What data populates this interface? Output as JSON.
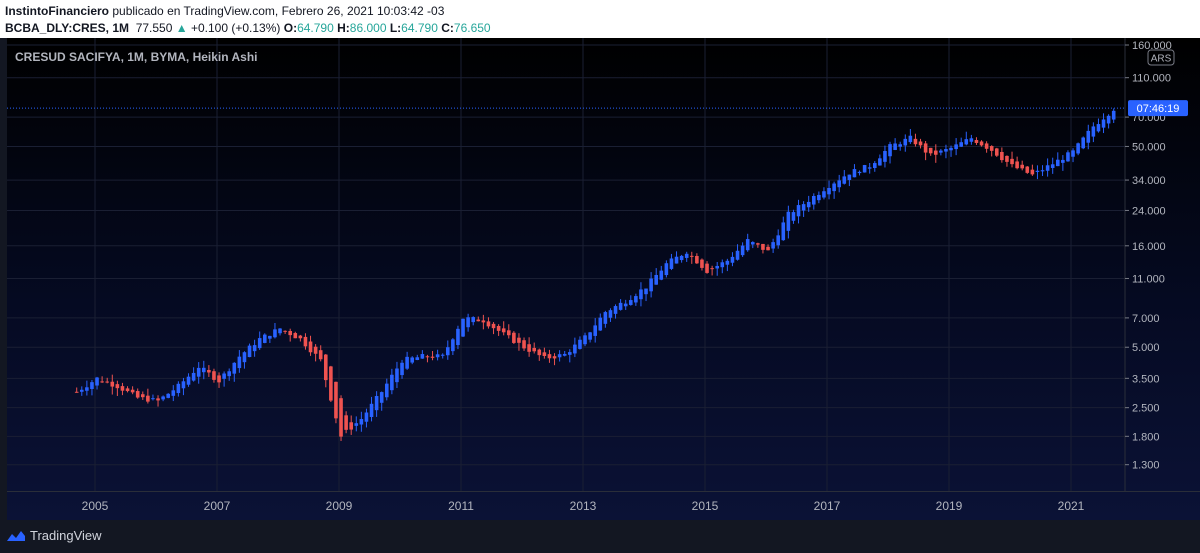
{
  "header": {
    "author": "InstintoFinanciero",
    "published_text": "publicado en TradingView.com, Febrero 26, 2021 10:03:42 -03",
    "symbol": "BCBA_DLY:CRES, 1M",
    "last_price": "77.550",
    "change_arrow": "▲",
    "change": "+0.100 (+0.13%)",
    "o_label": "O:",
    "o_value": "64.790",
    "h_label": "H:",
    "h_value": "86.000",
    "l_label": "L:",
    "l_value": "64.790",
    "c_label": "C:",
    "c_value": "76.650"
  },
  "chart_title": "CRESUD SACIFYA, 1M, BYMA, Heikin Ashi",
  "footer": {
    "brand": "TradingView"
  },
  "colors": {
    "up": "#2962ff",
    "down": "#ef5350",
    "countdown_bg": "#2962ff",
    "grid": "#1a1f33"
  },
  "chart_data": {
    "type": "candlestick",
    "chart_type": "Heikin Ashi",
    "scale": "log",
    "currency": "ARS",
    "countdown": "07:46:19",
    "current_price": 77.55,
    "x_ticks": [
      "2005",
      "2007",
      "2009",
      "2011",
      "2013",
      "2015",
      "2017",
      "2019",
      "2021"
    ],
    "y_ticks": [
      "160.000",
      "110.000",
      "70.000",
      "50.000",
      "34.000",
      "24.000",
      "16.000",
      "11.000",
      "7.000",
      "5.000",
      "3.500",
      "2.500",
      "1.800",
      "1.300"
    ],
    "ylim": [
      1.1,
      165
    ],
    "series": [
      {
        "values": [
          3.0,
          3.5,
          3.2,
          2.8,
          2.7,
          3.2,
          4.0,
          3.4,
          4.5,
          5.5,
          6.2,
          5.5,
          4.3,
          1.8,
          2.2,
          3.0,
          4.3,
          4.5,
          4.5,
          7.0,
          6.8,
          5.8,
          5.0,
          4.4,
          4.6,
          5.6,
          7.5,
          8.5,
          10.0,
          13.0,
          15.0,
          12.0,
          13.5,
          17.0,
          15.0,
          23.0,
          27.0,
          32.0,
          37.0,
          40.0,
          50.0,
          55.0,
          45.0,
          49.0,
          55.0,
          48.0,
          40.0,
          36.0,
          41.0,
          47.0,
          63.0,
          77.0
        ]
      }
    ]
  }
}
